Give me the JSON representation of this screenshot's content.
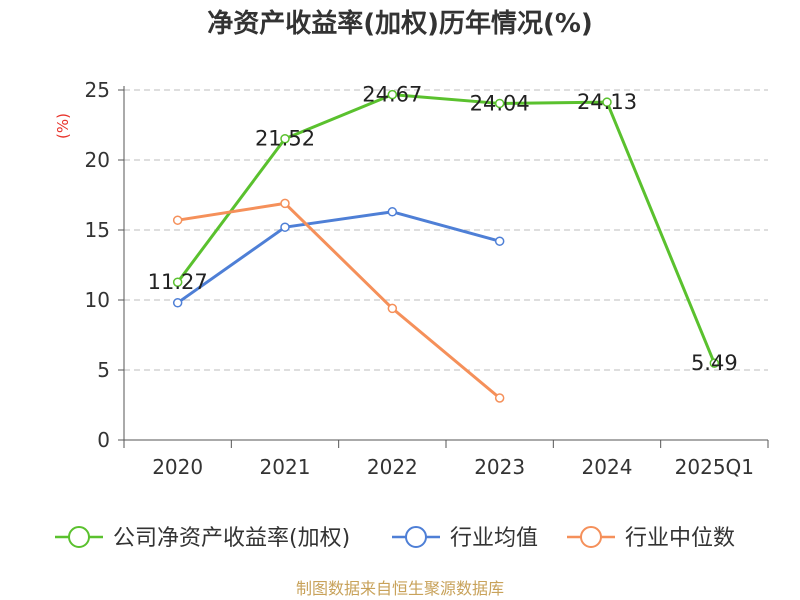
{
  "chart_data": {
    "type": "line",
    "title": "净资产收益率(加权)历年情况(%)",
    "ylabel": "(%)",
    "xlabel": "",
    "categories": [
      "2020",
      "2021",
      "2022",
      "2023",
      "2024",
      "2025Q1"
    ],
    "ylim": [
      0,
      25
    ],
    "yticks": [
      0,
      5,
      10,
      15,
      20,
      25
    ],
    "grid": true,
    "legend_position": "bottom",
    "series": [
      {
        "name": "公司净资产收益率(加权)",
        "color": "#5ac12e",
        "values": [
          11.27,
          21.52,
          24.67,
          24.04,
          24.13,
          5.49
        ],
        "labels": [
          "11.27",
          "21.52",
          "24.67",
          "24.04",
          "24.13",
          "5.49"
        ]
      },
      {
        "name": "行业均值",
        "color": "#4e7fd6",
        "values": [
          9.8,
          15.2,
          16.3,
          14.2,
          null,
          null
        ]
      },
      {
        "name": "行业中位数",
        "color": "#f5905a",
        "values": [
          15.7,
          16.9,
          9.4,
          3.0,
          null,
          null
        ]
      }
    ]
  },
  "source": "制图数据来自恒生聚源数据库"
}
